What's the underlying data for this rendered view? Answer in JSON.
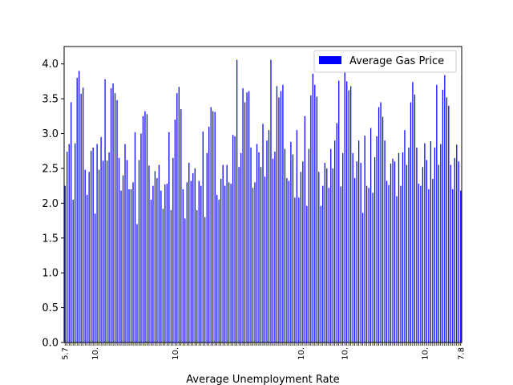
{
  "chart_data": {
    "type": "bar",
    "title": "",
    "xlabel": "Average Unemployment Rate",
    "ylabel": "",
    "ylim": [
      0,
      4.25
    ],
    "yticks": [
      0.0,
      0.5,
      1.0,
      1.5,
      2.0,
      2.5,
      3.0,
      3.5,
      4.0
    ],
    "grid": false,
    "legend_position": "top-right",
    "series": [
      {
        "name": "Average Gas Price",
        "color": "#0000ff",
        "values": [
          2.25,
          2.74,
          2.85,
          3.45,
          2.05,
          2.86,
          3.8,
          3.9,
          3.57,
          3.66,
          2.48,
          2.12,
          2.45,
          2.75,
          2.8,
          1.85,
          2.85,
          2.48,
          2.95,
          2.61,
          3.78,
          2.61,
          2.73,
          3.65,
          3.72,
          3.58,
          3.48,
          2.65,
          2.18,
          2.4,
          2.85,
          2.62,
          2.2,
          2.2,
          2.3,
          3.02,
          1.7,
          2.62,
          3.0,
          3.25,
          3.32,
          3.28,
          2.54,
          2.05,
          2.25,
          2.46,
          2.36,
          2.55,
          2.18,
          1.92,
          2.27,
          2.28,
          3.02,
          1.9,
          2.65,
          3.2,
          3.58,
          3.67,
          3.35,
          2.2,
          1.78,
          2.3,
          2.58,
          2.32,
          2.43,
          2.5,
          1.9,
          2.32,
          2.25,
          3.03,
          1.8,
          2.72,
          3.1,
          3.38,
          3.32,
          3.31,
          2.12,
          2.05,
          2.35,
          2.55,
          2.25,
          2.55,
          2.3,
          2.28,
          2.98,
          2.96,
          4.06,
          2.52,
          2.72,
          3.65,
          3.45,
          3.59,
          3.61,
          2.8,
          2.22,
          2.3,
          2.85,
          2.73,
          2.52,
          3.14,
          2.38,
          2.9,
          3.05,
          4.06,
          2.64,
          2.74,
          3.68,
          3.52,
          3.61,
          3.7,
          2.78,
          2.36,
          2.32,
          2.88,
          2.7,
          2.08,
          3.05,
          2.08,
          2.45,
          2.6,
          3.25,
          1.96,
          2.78,
          3.55,
          3.86,
          3.7,
          3.53,
          2.45,
          1.96,
          2.25,
          2.58,
          2.5,
          2.22,
          2.78,
          2.5,
          2.9,
          3.15,
          3.76,
          2.24,
          2.72,
          3.88,
          3.75,
          3.62,
          3.68,
          2.72,
          2.36,
          2.6,
          2.9,
          2.58,
          1.86,
          2.97,
          2.25,
          2.22,
          3.08,
          2.15,
          2.66,
          2.96,
          3.38,
          3.45,
          3.24,
          2.9,
          2.32,
          2.26,
          2.57,
          2.64,
          2.6,
          2.1,
          2.72,
          2.25,
          2.73,
          3.05,
          2.55,
          2.8,
          3.45,
          3.74,
          3.56,
          2.8,
          2.28,
          2.25,
          2.52,
          2.86,
          2.62,
          2.2,
          2.89,
          2.35,
          2.8,
          3.7,
          2.55,
          2.85,
          3.63,
          3.84,
          3.52,
          3.4,
          2.55,
          2.2,
          2.65,
          2.84,
          2.6,
          2.18
        ]
      }
    ],
    "x_tick_labels_visible": [
      "5.7",
      "10.",
      "10.",
      "10.",
      "10.",
      "10.",
      "7.8"
    ]
  }
}
